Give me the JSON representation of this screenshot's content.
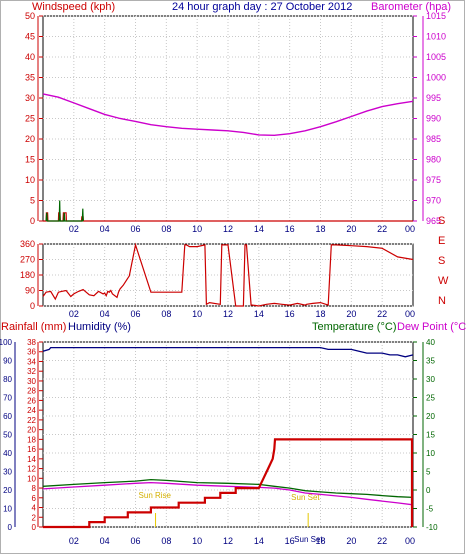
{
  "chart_data": [
    {
      "type": "line",
      "title": "24 hour graph day : 27 October 2012",
      "left_axis_label": "Windspeed (kph)",
      "right_axis_label": "Barometer (hpa)",
      "x_tick_labels": [
        "02",
        "04",
        "06",
        "08",
        "10",
        "12",
        "14",
        "16",
        "18",
        "20",
        "22",
        "00"
      ],
      "y_left_ticks": [
        "0",
        "5",
        "10",
        "15",
        "20",
        "25",
        "30",
        "35",
        "40",
        "45",
        "50"
      ],
      "y_left_range": [
        0,
        50
      ],
      "y_right_ticks": [
        "965",
        "970",
        "975",
        "980",
        "985",
        "990",
        "995",
        "1000",
        "1005",
        "1010",
        "1015"
      ],
      "y_right_range": [
        965,
        1015
      ],
      "grid": true,
      "colors": {
        "left": "#cc0000",
        "right": "#cc00cc",
        "title": "#000099"
      },
      "series": [
        {
          "name": "Barometer (hpa)",
          "axis": "right",
          "color": "#cc00cc",
          "x": [
            0,
            1,
            2,
            3,
            4,
            5,
            6,
            7,
            8,
            9,
            10,
            11,
            12,
            13,
            14,
            15,
            16,
            17,
            18,
            19,
            20,
            21,
            22,
            23,
            24
          ],
          "values": [
            996.0,
            995.2,
            993.8,
            992.4,
            991.0,
            990.0,
            989.3,
            988.5,
            988.0,
            987.6,
            987.4,
            987.2,
            987.0,
            986.6,
            986.0,
            985.9,
            986.3,
            987.0,
            988.0,
            989.2,
            990.5,
            991.8,
            992.9,
            993.6,
            994.2
          ]
        },
        {
          "name": "Windspeed (kph)",
          "axis": "left",
          "color": "#cc0000",
          "x": [
            0,
            0.2,
            0.22,
            0.3,
            0.32,
            1.0,
            1.02,
            1.1,
            1.12,
            1.3,
            1.32,
            1.5,
            1.52,
            2.5,
            2.52,
            2.6,
            2.62,
            4,
            8,
            12,
            16,
            20,
            24
          ],
          "values": [
            0,
            0,
            2,
            2,
            0,
            0,
            2,
            2,
            0,
            0,
            2,
            2,
            0,
            0,
            1,
            1,
            0,
            0,
            0,
            0,
            0,
            0,
            0
          ]
        },
        {
          "name": "Wind gust (kph)",
          "axis": "left",
          "color": "#006600",
          "x": [
            0.2,
            0.24,
            0.28,
            1.05,
            1.08,
            1.11,
            1.35,
            1.38,
            1.41,
            2.55,
            2.58,
            2.61
          ],
          "values": [
            0,
            2,
            0,
            0,
            5,
            0,
            0,
            2,
            0,
            0,
            3,
            0
          ]
        }
      ]
    },
    {
      "type": "line",
      "left_tick_labels": [
        "0",
        "90",
        "180",
        "270",
        "360"
      ],
      "y_range": [
        0,
        360
      ],
      "right_labels": [
        "N",
        "W",
        "S",
        "E",
        "S"
      ],
      "x_tick_labels": [
        "02",
        "04",
        "06",
        "08",
        "10",
        "12",
        "14",
        "16",
        "18",
        "20",
        "22",
        "00"
      ],
      "grid": true,
      "series": [
        {
          "name": "Wind direction",
          "color": "#cc0000",
          "x": [
            0,
            0.2,
            0.5,
            0.8,
            1.0,
            1.2,
            1.5,
            1.8,
            2.0,
            2.3,
            2.6,
            3.0,
            3.3,
            3.6,
            3.9,
            4.0,
            4.1,
            4.2,
            4.3,
            4.4,
            4.5,
            4.8,
            4.9,
            5.0,
            5.2,
            5.6,
            6,
            7,
            8,
            9,
            9.2,
            9.3,
            9.5,
            10,
            10.5,
            10.6,
            10.8,
            11.5,
            11.6,
            12,
            12.5,
            13,
            13.1,
            13.2,
            13.5,
            13.6,
            14,
            14.5,
            15,
            15.5,
            16,
            16.5,
            17,
            17.1,
            17.5,
            18.0,
            18.5,
            18.7,
            19,
            20,
            21,
            22,
            23,
            24
          ],
          "values": [
            55,
            80,
            85,
            40,
            80,
            85,
            90,
            55,
            70,
            85,
            95,
            65,
            60,
            85,
            70,
            75,
            60,
            85,
            80,
            90,
            70,
            50,
            80,
            100,
            120,
            175,
            355,
            80,
            80,
            80,
            355,
            355,
            345,
            345,
            355,
            10,
            20,
            10,
            355,
            355,
            0,
            0,
            355,
            355,
            5,
            5,
            0,
            10,
            15,
            10,
            5,
            15,
            5,
            10,
            15,
            20,
            5,
            355,
            355,
            350,
            345,
            335,
            285,
            270
          ]
        }
      ]
    },
    {
      "type": "line",
      "left_axis_label": "Rainfall (mm)",
      "left_axis2_label": "Humidity (%)",
      "right_axis_label": "Temperature (°C)",
      "right_axis2_label": "Dew Point (°C)",
      "x_tick_labels": [
        "02",
        "04",
        "06",
        "08",
        "10",
        "12",
        "14",
        "16",
        "18",
        "20",
        "22",
        "00"
      ],
      "y_humidity_ticks": [
        "0",
        "10",
        "20",
        "30",
        "40",
        "50",
        "60",
        "70",
        "80",
        "90",
        "100"
      ],
      "y_rain_ticks": [
        "0",
        "2",
        "4",
        "6",
        "8",
        "10",
        "12",
        "14",
        "16",
        "18",
        "20",
        "22",
        "24",
        "26",
        "28",
        "30",
        "32",
        "34",
        "36",
        "38"
      ],
      "y_temp_ticks": [
        "-10",
        "-5",
        "0",
        "5",
        "10",
        "15",
        "20",
        "25",
        "30",
        "35",
        "40"
      ],
      "y_humidity_range": [
        0,
        100
      ],
      "y_rain_range": [
        0,
        38
      ],
      "y_temp_range": [
        -10,
        40
      ],
      "annotations": [
        "Sun Rise",
        "Sun Set",
        "Sun Set"
      ],
      "grid": true,
      "series": [
        {
          "name": "Humidity (%)",
          "axis": "humidity",
          "color": "#000080",
          "x": [
            0,
            0.4,
            0.5,
            1,
            2,
            4,
            6,
            8,
            10,
            12,
            14,
            16,
            17,
            17.5,
            18,
            18.5,
            19,
            19.5,
            20,
            20.5,
            21,
            21.5,
            22,
            22.5,
            23,
            23.5,
            24
          ],
          "values": [
            95,
            96,
            97,
            97,
            97,
            97,
            97,
            97,
            97,
            97,
            97,
            97,
            97,
            97,
            97,
            96,
            96,
            96,
            96,
            95,
            94,
            94,
            94,
            93,
            93,
            92,
            93
          ]
        },
        {
          "name": "Temperature (°C)",
          "axis": "temp",
          "color": "#006600",
          "x": [
            0,
            2,
            4,
            6,
            7,
            8,
            10,
            12,
            14,
            15,
            16,
            17,
            18,
            19,
            20,
            21,
            22,
            23,
            24
          ],
          "values": [
            1.0,
            1.5,
            2.0,
            2.4,
            2.8,
            2.6,
            2.0,
            1.8,
            1.5,
            1.0,
            0.5,
            -0.2,
            -0.5,
            -0.8,
            -1.0,
            -1.2,
            -1.5,
            -1.8,
            -2.0
          ]
        },
        {
          "name": "Dew Point (°C)",
          "axis": "temp",
          "color": "#cc00cc",
          "x": [
            0,
            2,
            4,
            6,
            7,
            8,
            10,
            12,
            14,
            15,
            16,
            17,
            18,
            19,
            20,
            21,
            22,
            23,
            24
          ],
          "values": [
            0.3,
            0.8,
            1.3,
            1.8,
            2.0,
            1.8,
            1.3,
            1.0,
            0.7,
            0.5,
            0.0,
            -0.8,
            -1.2,
            -1.6,
            -2.0,
            -2.5,
            -3.0,
            -3.5,
            -4.0
          ]
        },
        {
          "name": "Rainfall (mm)",
          "axis": "rain",
          "color": "#cc0000",
          "x": [
            0,
            2,
            3,
            3,
            4,
            4,
            5.5,
            5.5,
            7,
            7,
            8.8,
            8.8,
            10.5,
            10.5,
            11.5,
            11.5,
            12.5,
            12.5,
            14,
            14.3,
            14.6,
            14.9,
            15,
            15.05,
            24
          ],
          "values": [
            0,
            0,
            0,
            1,
            1,
            2,
            2,
            3,
            3,
            4,
            4,
            5,
            5,
            6,
            6,
            7,
            7,
            8,
            8,
            10,
            12,
            14,
            16,
            18,
            18
          ]
        }
      ]
    }
  ]
}
